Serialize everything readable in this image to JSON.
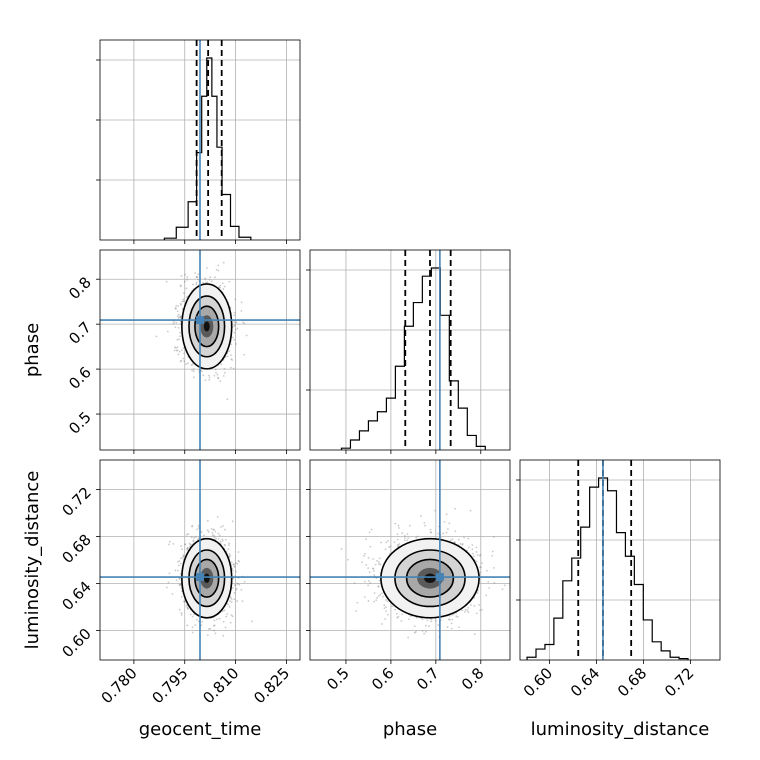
{
  "chart_data": {
    "type": "corner",
    "parameters": [
      "geocent_time",
      "phase",
      "luminosity_distance"
    ],
    "axis_labels": {
      "x": [
        "geocent_time",
        "phase",
        "luminosity_distance"
      ],
      "y": [
        "phase",
        "luminosity_distance"
      ]
    },
    "ranges": {
      "geocent_time": [
        0.77,
        0.829
      ],
      "phase": [
        0.42,
        0.865
      ],
      "luminosity_distance": [
        0.575,
        0.745
      ]
    },
    "ticks": {
      "geocent_time": [
        "0.780",
        "0.795",
        "0.810",
        "0.825"
      ],
      "phase": [
        "0.5",
        "0.6",
        "0.7",
        "0.8"
      ],
      "luminosity_distance": [
        "0.60",
        "0.64",
        "0.68",
        "0.72"
      ]
    },
    "truths": {
      "geocent_time": 0.7995,
      "phase": 0.709,
      "luminosity_distance": 0.6455
    },
    "truth_color": "#4682b4",
    "quantiles": {
      "geocent_time": [
        0.7985,
        0.8019,
        0.8059
      ],
      "phase": [
        0.632,
        0.687,
        0.733
      ],
      "luminosity_distance": [
        0.6245,
        0.6455,
        0.6695
      ]
    },
    "histograms": {
      "geocent_time": {
        "bin_edges": [
          0.789,
          0.7925,
          0.796,
          0.7985,
          0.8,
          0.8015,
          0.803,
          0.8045,
          0.806,
          0.8085,
          0.811,
          0.8145
        ],
        "counts": [
          0.2,
          1.4,
          4.2,
          9.6,
          15.8,
          20,
          15.8,
          10.2,
          5.0,
          1.5,
          0.3
        ]
      },
      "phase": {
        "bin_edges": [
          0.49,
          0.51,
          0.53,
          0.55,
          0.57,
          0.59,
          0.61,
          0.63,
          0.65,
          0.67,
          0.69,
          0.71,
          0.73,
          0.75,
          0.77,
          0.79,
          0.81
        ],
        "counts": [
          0.2,
          1.1,
          2.1,
          3.2,
          4.2,
          5.7,
          9.2,
          13.6,
          16.2,
          19.1,
          20.0,
          14.8,
          7.6,
          4.6,
          1.6,
          0.4
        ]
      },
      "luminosity_distance": {
        "bin_edges": [
          0.581,
          0.5886,
          0.5962,
          0.6038,
          0.6114,
          0.619,
          0.6266,
          0.6342,
          0.6418,
          0.6494,
          0.657,
          0.6646,
          0.6722,
          0.6798,
          0.6874,
          0.695,
          0.7026,
          0.7102,
          0.7178
        ],
        "counts": [
          0.3,
          1.2,
          1.7,
          4.6,
          8.7,
          11.2,
          14.6,
          19.0,
          20.0,
          18.6,
          14.0,
          11.4,
          8.3,
          4.4,
          2.0,
          1.0,
          0.3,
          0.15
        ]
      }
    },
    "posterior_2d": {
      "phase_vs_geocent_time": {
        "x_center": 0.8015,
        "y_center": 0.695,
        "x_sigma": 0.0035,
        "y_sigma": 0.045
      },
      "luminosity_distance_vs_geocent_time": {
        "x_center": 0.8015,
        "y_center": 0.6445,
        "x_sigma": 0.0035,
        "y_sigma": 0.016
      },
      "luminosity_distance_vs_phase": {
        "x_center": 0.687,
        "y_center": 0.6445,
        "x_sigma": 0.052,
        "y_sigma": 0.016
      }
    }
  }
}
